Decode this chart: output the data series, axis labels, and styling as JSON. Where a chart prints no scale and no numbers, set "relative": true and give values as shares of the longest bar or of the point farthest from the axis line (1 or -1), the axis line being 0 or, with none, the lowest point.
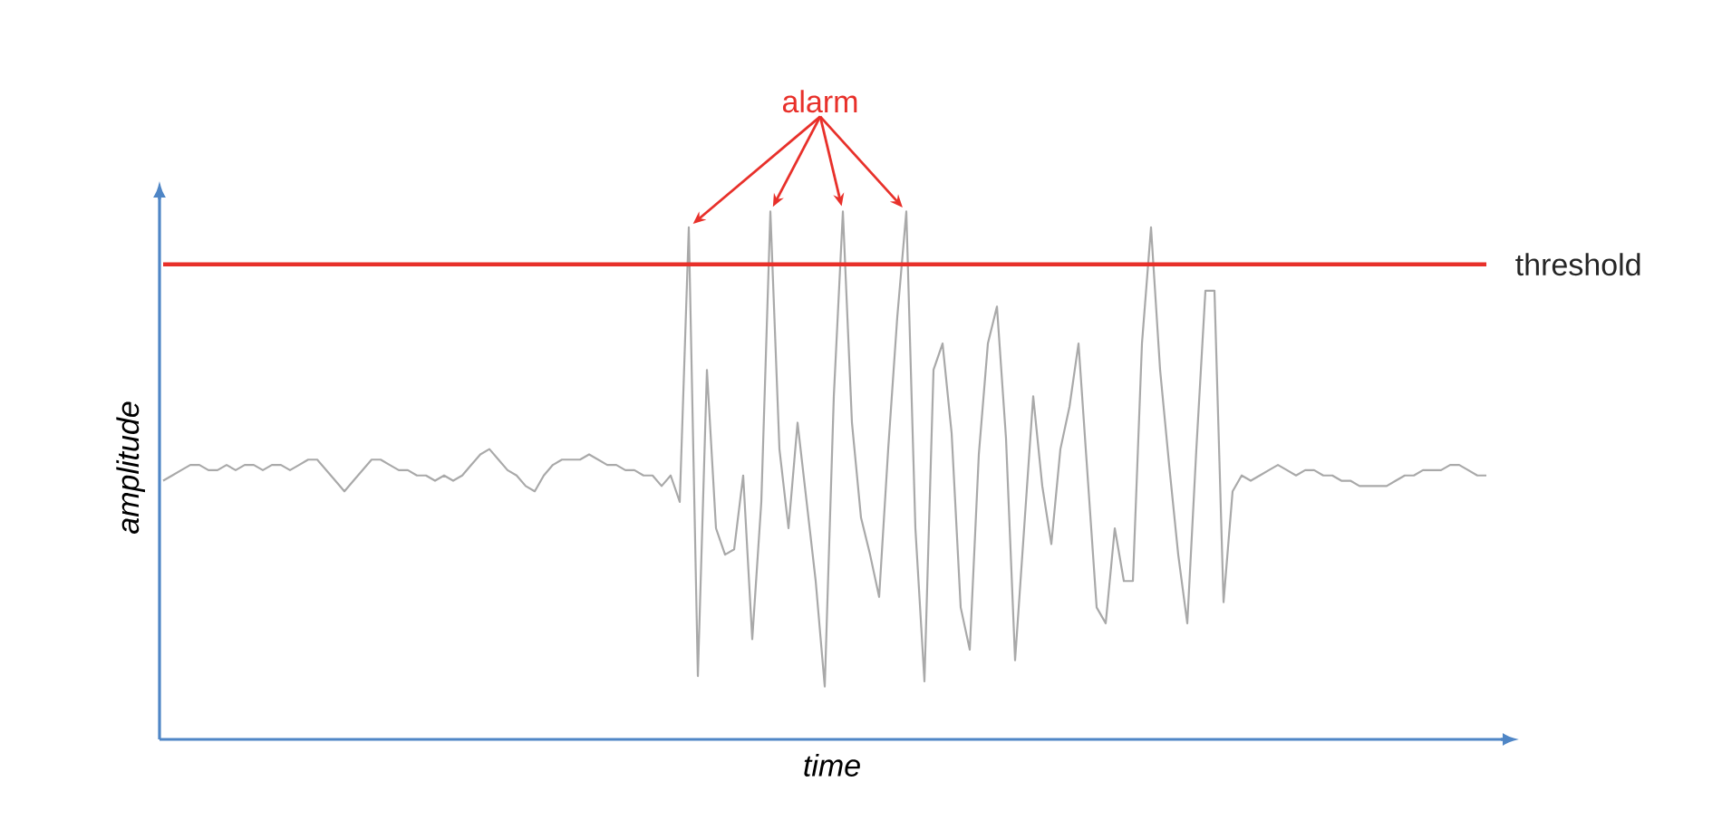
{
  "chart_data": {
    "type": "line",
    "relative": true,
    "xlabel": "time",
    "ylabel": "amplitude",
    "annotations": [
      "alarm"
    ],
    "ref_lines": [
      {
        "axis": "y",
        "value": 0.9,
        "label": "threshold",
        "color": "#e8302a"
      }
    ],
    "categories": [
      null,
      null,
      null,
      null,
      null,
      null,
      null,
      null,
      null,
      null,
      null,
      null,
      null,
      null,
      null,
      null,
      null,
      null,
      null,
      null,
      null,
      null,
      null,
      null,
      null,
      null,
      null,
      null,
      null,
      null,
      null,
      null,
      null,
      null,
      null,
      null,
      null,
      null,
      null,
      null,
      null,
      null,
      null,
      null,
      null,
      null,
      null,
      null,
      null,
      null,
      null,
      null,
      null,
      null,
      null,
      null,
      null,
      null,
      null,
      null,
      null,
      null,
      null,
      null,
      null,
      null,
      null,
      null,
      null,
      null,
      null,
      null,
      null,
      null,
      null,
      null,
      null,
      null,
      null,
      null,
      null,
      null,
      null,
      null,
      null,
      null,
      null,
      null,
      null,
      null,
      null,
      null,
      null,
      null,
      null,
      null,
      null,
      null,
      null,
      null,
      null,
      null,
      null,
      null,
      null,
      null,
      null,
      null,
      null,
      null,
      null,
      null,
      null,
      null,
      null,
      null,
      null,
      null,
      null,
      null,
      null,
      null,
      null,
      null,
      null,
      null,
      null,
      null,
      null,
      null,
      null,
      null,
      null,
      null,
      null,
      null,
      null,
      null,
      null,
      null,
      null,
      null,
      null,
      null,
      null,
      null,
      null
    ],
    "series": [
      {
        "color": "#a9a9a9",
        "values": [
          0.49,
          0.5,
          0.51,
          0.52,
          0.52,
          0.51,
          0.51,
          0.52,
          0.51,
          0.52,
          0.52,
          0.51,
          0.52,
          0.52,
          0.51,
          0.52,
          0.53,
          0.53,
          0.51,
          0.49,
          0.47,
          0.49,
          0.51,
          0.53,
          0.53,
          0.52,
          0.51,
          0.51,
          0.5,
          0.5,
          0.49,
          0.5,
          0.49,
          0.5,
          0.52,
          0.54,
          0.55,
          0.53,
          0.51,
          0.5,
          0.48,
          0.47,
          0.5,
          0.52,
          0.53,
          0.53,
          0.53,
          0.54,
          0.53,
          0.52,
          0.52,
          0.51,
          0.51,
          0.5,
          0.5,
          0.48,
          0.5,
          0.45,
          0.97,
          0.12,
          0.7,
          0.4,
          0.35,
          0.36,
          0.5,
          0.19,
          0.45,
          1.0,
          0.55,
          0.4,
          0.6,
          0.45,
          0.3,
          0.1,
          0.65,
          1.0,
          0.6,
          0.42,
          0.35,
          0.27,
          0.55,
          0.8,
          1.0,
          0.4,
          0.11,
          0.7,
          0.75,
          0.58,
          0.25,
          0.17,
          0.54,
          0.75,
          0.82,
          0.57,
          0.15,
          0.4,
          0.65,
          0.48,
          0.37,
          0.55,
          0.63,
          0.75,
          0.5,
          0.25,
          0.22,
          0.4,
          0.3,
          0.3,
          0.75,
          0.97,
          0.7,
          0.52,
          0.35,
          0.22,
          0.55,
          0.85,
          0.85,
          0.26,
          0.47,
          0.5,
          0.49,
          0.5,
          0.51,
          0.52,
          0.51,
          0.5,
          0.51,
          0.51,
          0.5,
          0.5,
          0.49,
          0.49,
          0.48,
          0.48,
          0.48,
          0.48,
          0.49,
          0.5,
          0.5,
          0.51,
          0.51,
          0.51,
          0.52,
          0.52,
          0.51,
          0.5,
          0.5
        ]
      }
    ]
  }
}
